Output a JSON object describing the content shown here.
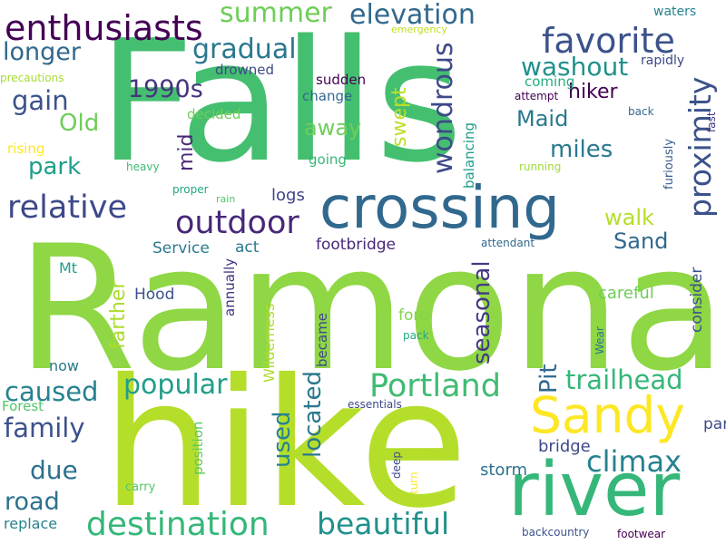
{
  "words": [
    {
      "text": "Ramona",
      "color": "#8fd744"
    },
    {
      "text": "Falls",
      "color": "#44bf70"
    },
    {
      "text": "hike",
      "color": "#b5de2b"
    },
    {
      "text": "river",
      "color": "#35b779"
    },
    {
      "text": "crossing",
      "color": "#31688e"
    },
    {
      "text": "Sandy",
      "color": "#fde725"
    },
    {
      "text": "enthusiasts",
      "color": "#440154"
    },
    {
      "text": "destination",
      "color": "#35b779"
    },
    {
      "text": "favorite",
      "color": "#3b528b"
    },
    {
      "text": "outdoor",
      "color": "#482878"
    },
    {
      "text": "relative",
      "color": "#3e4989"
    },
    {
      "text": "Portland",
      "color": "#3fbc73"
    },
    {
      "text": "beautiful",
      "color": "#21918c"
    },
    {
      "text": "summer",
      "color": "#6ece58"
    },
    {
      "text": "elevation",
      "color": "#31688e"
    },
    {
      "text": "gradual",
      "color": "#2a788e"
    },
    {
      "text": "washout",
      "color": "#21918c"
    },
    {
      "text": "wondrous",
      "color": "#3e4989"
    },
    {
      "text": "proximity",
      "color": "#3b528b"
    },
    {
      "text": "climax",
      "color": "#26828e"
    },
    {
      "text": "trailhead",
      "color": "#35b779"
    },
    {
      "text": "popular",
      "color": "#1f9e89"
    },
    {
      "text": "caused",
      "color": "#26828e"
    },
    {
      "text": "family",
      "color": "#3b528b"
    },
    {
      "text": "due",
      "color": "#2c728e"
    },
    {
      "text": "road",
      "color": "#2c728e"
    },
    {
      "text": "gain",
      "color": "#3b528b"
    },
    {
      "text": "longer",
      "color": "#31688e"
    },
    {
      "text": "1990s",
      "color": "#46337e"
    },
    {
      "text": "Old",
      "color": "#6ece58"
    },
    {
      "text": "park",
      "color": "#1f9e89"
    },
    {
      "text": "miles",
      "color": "#2a788e"
    },
    {
      "text": "Maid",
      "color": "#2a788e"
    },
    {
      "text": "away",
      "color": "#6ece58"
    },
    {
      "text": "walk",
      "color": "#b5de2b"
    },
    {
      "text": "Sand",
      "color": "#31688e"
    },
    {
      "text": "used",
      "color": "#26828e"
    },
    {
      "text": "located",
      "color": "#2a788e"
    },
    {
      "text": "seasonal",
      "color": "#443983"
    },
    {
      "text": "Pit",
      "color": "#31688e"
    },
    {
      "text": "hiker",
      "color": "#440154"
    },
    {
      "text": "swept",
      "color": "#bddf26"
    },
    {
      "text": "farther",
      "color": "#addc30"
    },
    {
      "text": "mid",
      "color": "#482878"
    },
    {
      "text": "logs",
      "color": "#414487"
    },
    {
      "text": "storm",
      "color": "#2c728e"
    },
    {
      "text": "bridge",
      "color": "#3e4989"
    },
    {
      "text": "footbridge",
      "color": "#482878"
    },
    {
      "text": "careful",
      "color": "#6ece58"
    },
    {
      "text": "consider",
      "color": "#3b528b"
    },
    {
      "text": "ford",
      "color": "#84d44b"
    },
    {
      "text": "part",
      "color": "#3e4989"
    },
    {
      "text": "replace",
      "color": "#26828e"
    },
    {
      "text": "Hood",
      "color": "#3b528b"
    },
    {
      "text": "Mt",
      "color": "#1f9e89"
    },
    {
      "text": "Service",
      "color": "#2a788e"
    },
    {
      "text": "act",
      "color": "#2a788e"
    },
    {
      "text": "now",
      "color": "#2a788e"
    },
    {
      "text": "Forest",
      "color": "#52c569"
    },
    {
      "text": "Wilderness",
      "color": "#addc30"
    },
    {
      "text": "became",
      "color": "#3e4989"
    },
    {
      "text": "annually",
      "color": "#46337e"
    },
    {
      "text": "position",
      "color": "#5ec962"
    },
    {
      "text": "balancing",
      "color": "#1f9e89"
    },
    {
      "text": "coming",
      "color": "#26ad81"
    },
    {
      "text": "sudden",
      "color": "#440154"
    },
    {
      "text": "change",
      "color": "#31688e"
    },
    {
      "text": "going",
      "color": "#35b779"
    },
    {
      "text": "decided",
      "color": "#6ece58"
    },
    {
      "text": "drowned",
      "color": "#3e4989"
    },
    {
      "text": "rising",
      "color": "#fde725"
    },
    {
      "text": "waters",
      "color": "#25848e"
    },
    {
      "text": "rapidly",
      "color": "#3e4989"
    },
    {
      "text": "heavy",
      "color": "#3fbc73"
    },
    {
      "text": "proper",
      "color": "#22a884"
    },
    {
      "text": "rain",
      "color": "#52c569"
    },
    {
      "text": "running",
      "color": "#a0da39"
    },
    {
      "text": "attempt",
      "color": "#440154"
    },
    {
      "text": "back",
      "color": "#31688e"
    },
    {
      "text": "fast",
      "color": "#46337e"
    },
    {
      "text": "furiously",
      "color": "#365c8d"
    },
    {
      "text": "attendant",
      "color": "#31688e"
    },
    {
      "text": "precautions",
      "color": "#a8db34"
    },
    {
      "text": "emergency",
      "color": "#bddf26"
    },
    {
      "text": "essentials",
      "color": "#3e4989"
    },
    {
      "text": "pack",
      "color": "#22a884"
    },
    {
      "text": "Wear",
      "color": "#2a788e"
    },
    {
      "text": "deep",
      "color": "#3e4989"
    },
    {
      "text": "turn",
      "color": "#fde725"
    },
    {
      "text": "carry",
      "color": "#52c569"
    },
    {
      "text": "backcountry",
      "color": "#3b528b"
    },
    {
      "text": "footwear",
      "color": "#440154"
    }
  ]
}
